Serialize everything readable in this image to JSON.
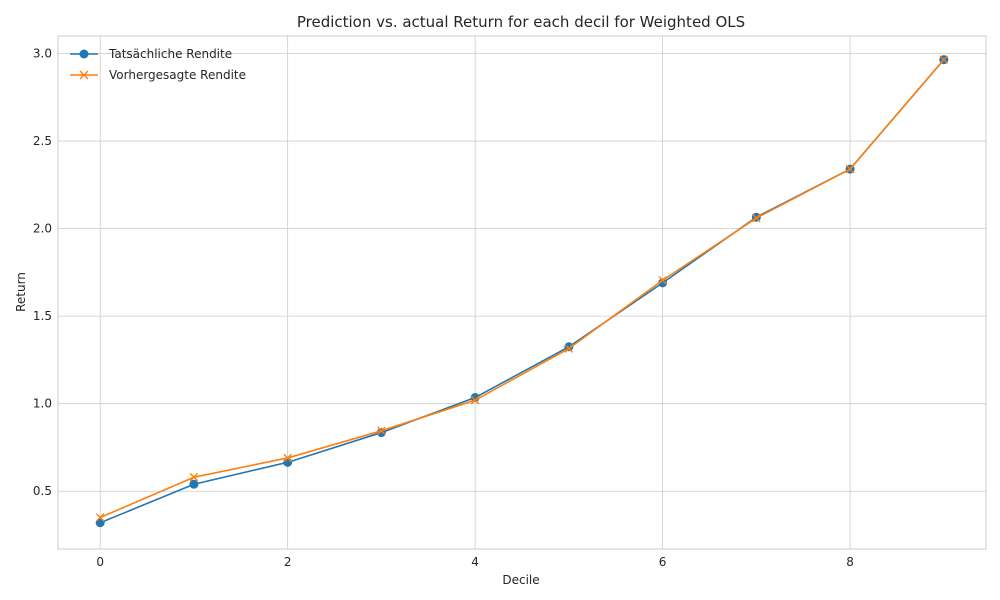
{
  "chart_data": {
    "type": "line",
    "title": "Prediction vs. actual Return for each decil for Weighted OLS",
    "xlabel": "Decile",
    "ylabel": "Return",
    "x": [
      0,
      1,
      2,
      3,
      4,
      5,
      6,
      7,
      8,
      9
    ],
    "xlim": [
      -0.45,
      9.45
    ],
    "ylim": [
      0.17,
      3.1
    ],
    "x_ticks": [
      0,
      2,
      4,
      6,
      8
    ],
    "y_ticks": [
      0.5,
      1.0,
      1.5,
      2.0,
      2.5,
      3.0
    ],
    "x_tick_labels": [
      "0",
      "2",
      "4",
      "6",
      "8"
    ],
    "y_tick_labels": [
      "0.5",
      "1.0",
      "1.5",
      "2.0",
      "2.5",
      "3.0"
    ],
    "grid": true,
    "legend_position": "top-left",
    "series": [
      {
        "name": "Tatsächliche Rendite",
        "marker": "circle",
        "color": "#1f77b4",
        "values": [
          0.32,
          0.54,
          0.665,
          0.835,
          1.035,
          1.325,
          1.69,
          2.065,
          2.34,
          2.965
        ]
      },
      {
        "name": "Vorhergesagte Rendite",
        "marker": "x",
        "color": "#ff7f0e",
        "values": [
          0.35,
          0.58,
          0.69,
          0.845,
          1.02,
          1.315,
          1.705,
          2.06,
          2.34,
          2.965
        ]
      }
    ]
  }
}
